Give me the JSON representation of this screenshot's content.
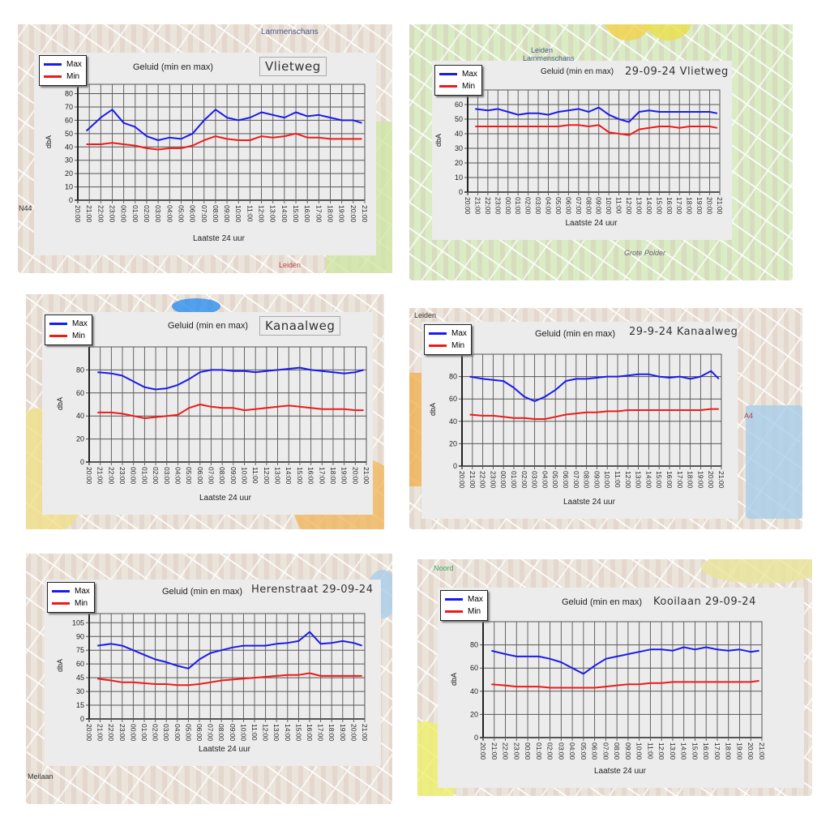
{
  "common": {
    "chart_title": "Geluid (min en max)",
    "xlabel": "Laatste 24 uur",
    "ylabel": "dbA",
    "legend": [
      "Max",
      "Min"
    ],
    "colors": {
      "max": "#1a1aee",
      "min": "#ee1a1a"
    },
    "x_tick_labels": [
      "20:00",
      "21:00",
      "22:00",
      "23:00",
      "00:00",
      "01:00",
      "02:00",
      "03:00",
      "04:00",
      "05:00",
      "06:00",
      "07:00",
      "08:00",
      "09:00",
      "10:00",
      "11:00",
      "12:00",
      "13:00",
      "14:00",
      "15:00",
      "16:00",
      "17:00",
      "18:00",
      "19:00",
      "20:00",
      "21:00"
    ]
  },
  "map_labels": {
    "p1": [
      "Lammenschans",
      "N44",
      "Leiden"
    ],
    "p2": [
      "Leiden",
      "Lammenschans",
      "Grote Polder"
    ],
    "p4": [
      "Leiden",
      "A4"
    ],
    "p5": [
      "Meilaan"
    ],
    "p6": [
      "Noord"
    ]
  },
  "chart_data": [
    {
      "type": "line",
      "location": "Vlietweg",
      "date": "",
      "ylim": [
        0,
        87
      ],
      "yticks": [
        0,
        10,
        20,
        30,
        40,
        50,
        60,
        70,
        80
      ],
      "x_hours": [
        0.75,
        2,
        3,
        4,
        5,
        6,
        7,
        8,
        9,
        10,
        11,
        12,
        13,
        14,
        15,
        16,
        17,
        18,
        19,
        20,
        21,
        22,
        23,
        24,
        24.75
      ],
      "series": [
        {
          "name": "Max",
          "values": [
            52,
            62,
            68,
            58,
            55,
            48,
            45,
            47,
            46,
            50,
            60,
            68,
            62,
            60,
            62,
            66,
            64,
            62,
            66,
            63,
            64,
            62,
            60,
            60,
            58
          ]
        },
        {
          "name": "Min",
          "values": [
            42,
            42,
            43,
            42,
            41,
            39,
            38,
            39,
            39,
            41,
            45,
            48,
            46,
            45,
            45,
            48,
            47,
            48,
            50,
            47,
            47,
            46,
            46,
            46,
            46
          ]
        }
      ]
    },
    {
      "type": "line",
      "location": "Vlietweg",
      "date": "29-09-24",
      "ylim": [
        0,
        70
      ],
      "yticks": [
        0,
        10,
        20,
        30,
        40,
        50,
        60
      ],
      "x_hours": [
        0.75,
        2,
        3,
        4,
        5,
        6,
        7,
        8,
        9,
        10,
        11,
        12,
        13,
        14,
        15,
        16,
        17,
        18,
        19,
        20,
        21,
        22,
        23,
        24,
        24.75
      ],
      "series": [
        {
          "name": "Max",
          "values": [
            57,
            56,
            57,
            55,
            53,
            54,
            54,
            53,
            55,
            56,
            57,
            55,
            58,
            53,
            50,
            48,
            55,
            56,
            55,
            55,
            55,
            55,
            55,
            55,
            54
          ]
        },
        {
          "name": "Min",
          "values": [
            45,
            45,
            45,
            45,
            45,
            45,
            45,
            45,
            45,
            46,
            46,
            45,
            46,
            41,
            40,
            39,
            43,
            44,
            45,
            45,
            44,
            45,
            45,
            45,
            44
          ]
        }
      ]
    },
    {
      "type": "line",
      "location": "Kanaalweg",
      "date": "",
      "ylim": [
        0,
        100
      ],
      "yticks": [
        0,
        20,
        40,
        60,
        80
      ],
      "x_hours": [
        0.75,
        2,
        3,
        4,
        5,
        6,
        7,
        8,
        9,
        10,
        11,
        12,
        13,
        14,
        15,
        16,
        17,
        18,
        19,
        20,
        21,
        22,
        23,
        24,
        24.75
      ],
      "series": [
        {
          "name": "Max",
          "values": [
            78,
            77,
            75,
            70,
            65,
            63,
            64,
            67,
            72,
            78,
            80,
            80,
            79,
            79,
            78,
            79,
            80,
            81,
            82,
            80,
            79,
            78,
            77,
            78,
            80
          ]
        },
        {
          "name": "Min",
          "values": [
            43,
            43,
            42,
            40,
            38,
            39,
            40,
            41,
            47,
            50,
            48,
            47,
            47,
            45,
            46,
            47,
            48,
            49,
            48,
            47,
            46,
            46,
            46,
            45,
            45
          ]
        }
      ]
    },
    {
      "type": "line",
      "location": "Kanaalweg",
      "date": "29-9-24",
      "ylim": [
        0,
        100
      ],
      "yticks": [
        0,
        20,
        40,
        60,
        80
      ],
      "x_hours": [
        0.75,
        2,
        3,
        4,
        5,
        6,
        7,
        8,
        9,
        10,
        11,
        12,
        13,
        14,
        15,
        16,
        17,
        18,
        19,
        20,
        21,
        22,
        23,
        24,
        24.75
      ],
      "series": [
        {
          "name": "Max",
          "values": [
            80,
            78,
            77,
            76,
            70,
            62,
            58,
            62,
            68,
            76,
            78,
            78,
            79,
            80,
            80,
            81,
            82,
            82,
            80,
            79,
            80,
            78,
            80,
            85,
            78
          ]
        },
        {
          "name": "Min",
          "values": [
            46,
            45,
            45,
            44,
            43,
            43,
            42,
            42,
            44,
            46,
            47,
            48,
            48,
            49,
            49,
            50,
            50,
            50,
            50,
            50,
            50,
            50,
            50,
            51,
            51
          ]
        }
      ]
    },
    {
      "type": "line",
      "location": "Herenstraat",
      "date": "29-09-24",
      "ylim": [
        0,
        115
      ],
      "yticks": [
        0,
        15,
        30,
        45,
        60,
        75,
        90,
        105
      ],
      "x_hours": [
        0.75,
        2,
        3,
        4,
        5,
        6,
        7,
        8,
        9,
        10,
        11,
        12,
        13,
        14,
        15,
        16,
        17,
        18,
        19,
        20,
        21,
        22,
        23,
        24,
        24.75
      ],
      "series": [
        {
          "name": "Max",
          "values": [
            80,
            82,
            80,
            75,
            70,
            65,
            62,
            58,
            55,
            65,
            72,
            75,
            78,
            80,
            80,
            80,
            82,
            83,
            85,
            95,
            82,
            83,
            85,
            83,
            80
          ]
        },
        {
          "name": "Min",
          "values": [
            44,
            42,
            40,
            40,
            39,
            38,
            38,
            37,
            37,
            38,
            40,
            42,
            43,
            44,
            45,
            46,
            47,
            48,
            48,
            50,
            47,
            47,
            47,
            47,
            47
          ]
        }
      ]
    },
    {
      "type": "line",
      "location": "Kooilaan",
      "date": "29-09-24",
      "ylim": [
        0,
        100
      ],
      "yticks": [
        0,
        20,
        40,
        60,
        80
      ],
      "x_hours": [
        0.75,
        2,
        3,
        4,
        5,
        6,
        7,
        8,
        9,
        10,
        11,
        12,
        13,
        14,
        15,
        16,
        17,
        18,
        19,
        20,
        21,
        22,
        23,
        24,
        24.75
      ],
      "series": [
        {
          "name": "Max",
          "values": [
            75,
            72,
            70,
            70,
            70,
            68,
            65,
            60,
            55,
            62,
            68,
            70,
            72,
            74,
            76,
            76,
            75,
            78,
            76,
            78,
            76,
            75,
            76,
            74,
            75
          ]
        },
        {
          "name": "Min",
          "values": [
            46,
            45,
            44,
            44,
            44,
            43,
            43,
            43,
            43,
            43,
            44,
            45,
            46,
            46,
            47,
            47,
            48,
            48,
            48,
            48,
            48,
            48,
            48,
            48,
            49
          ]
        }
      ]
    }
  ]
}
